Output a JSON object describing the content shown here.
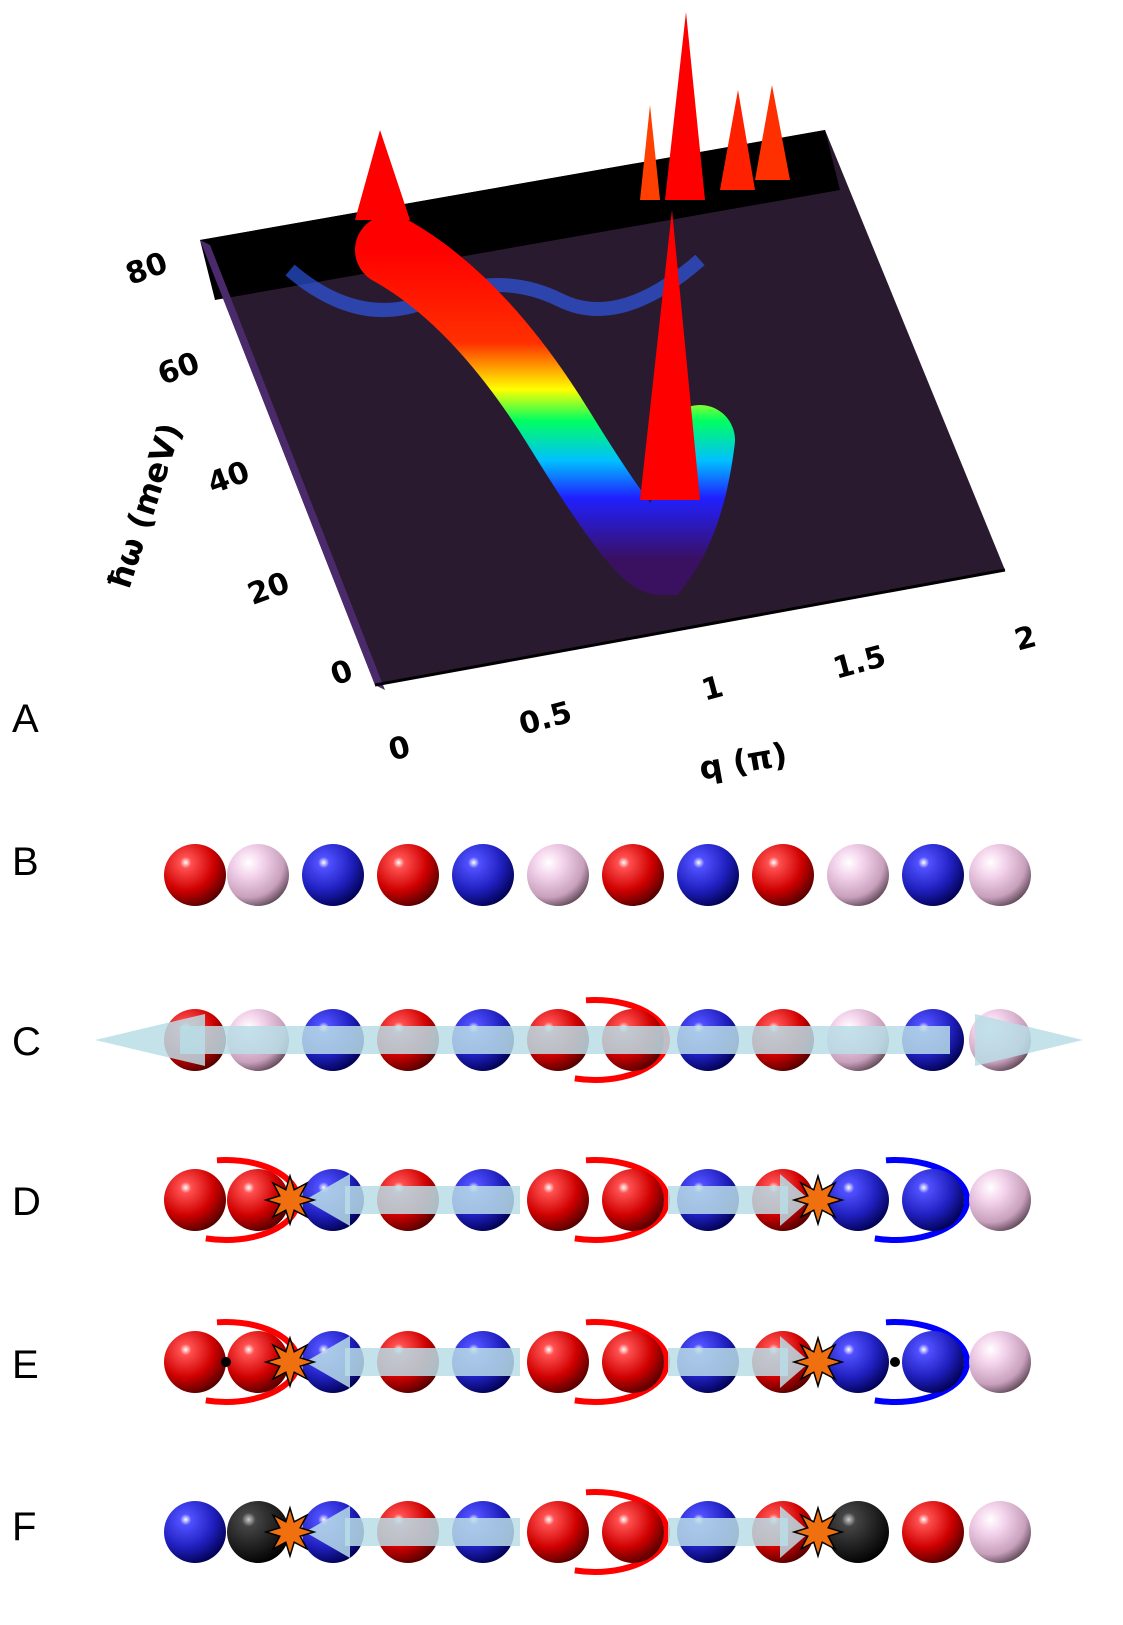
{
  "panels": {
    "labels": [
      "A",
      "B",
      "C",
      "D",
      "E",
      "F"
    ]
  },
  "plot": {
    "y_label": "ħω (meV)",
    "x_label": "q (π)",
    "y_ticks": [
      "0",
      "20",
      "40",
      "60",
      "80"
    ],
    "x_ticks": [
      "0",
      "0.5",
      "1",
      "1.5",
      "2"
    ]
  }
}
